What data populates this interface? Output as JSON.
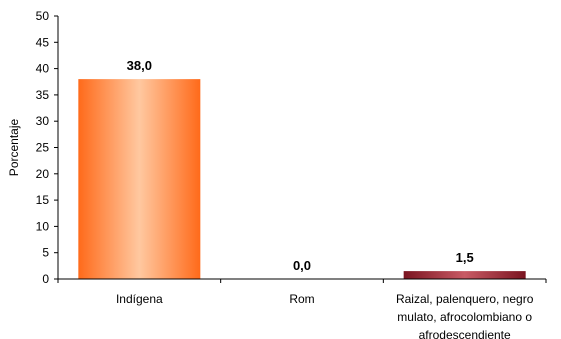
{
  "chart_data": {
    "type": "bar",
    "title": "",
    "xlabel": "",
    "ylabel": "Porcentaje",
    "ylim": [
      0,
      50
    ],
    "yticks": [
      "0",
      "5",
      "10",
      "15",
      "20",
      "25",
      "30",
      "35",
      "40",
      "45",
      "50"
    ],
    "categories": [
      [
        "Indígena"
      ],
      [
        "Rom"
      ],
      [
        "Raizal, palenquero, negro",
        "mulato, afrocolombiano o",
        "afrodescendiente"
      ]
    ],
    "values": [
      38.0,
      0.0,
      1.5
    ],
    "data_labels": [
      "38,0",
      "0,0",
      "1,5"
    ],
    "grid": false,
    "legend": "none",
    "colors": {
      "bar1_edge": "#ff6a1a",
      "bar1_center": "#ffc8a0",
      "bar3_edge": "#7a1420",
      "bar3_center": "#c85a64"
    }
  }
}
